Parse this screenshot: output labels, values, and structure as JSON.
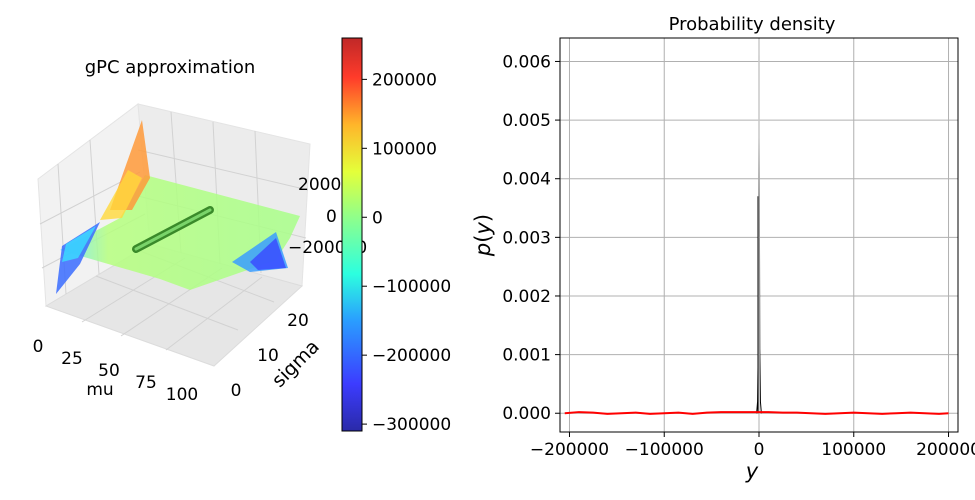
{
  "chart_data": [
    {
      "type": "surface3d",
      "title": "gPC approximation",
      "xlabel": "mu",
      "ylabel": "sigma",
      "x_ticks": [
        "0",
        "25",
        "50",
        "75",
        "100"
      ],
      "y_ticks": [
        "0",
        "10",
        "20"
      ],
      "z_ticks": [
        "-200000",
        "0",
        "200000"
      ],
      "z_tick_labels": [
        "−200000",
        "0",
        "200000"
      ],
      "xlim": [
        0,
        100
      ],
      "ylim": [
        0,
        25
      ],
      "zlim": [
        -300000,
        250000
      ],
      "colormap": "jet",
      "colorbar": {
        "ticks": [
          200000,
          100000,
          0,
          -100000,
          -200000,
          -300000
        ],
        "tick_labels": [
          "200000",
          "100000",
          "0",
          "−100000",
          "−200000",
          "−300000"
        ],
        "range": [
          -310000,
          260000
        ]
      },
      "samples_line": {
        "from": [
          0,
          0,
          0
        ],
        "to": [
          100,
          25,
          0
        ],
        "color": "#2e8b1e"
      }
    },
    {
      "type": "line",
      "title": "Probability density",
      "xlabel": "y",
      "ylabel": "p(y)",
      "xlim": [
        -210000,
        210000
      ],
      "ylim": [
        -0.00032,
        0.0064
      ],
      "grid": true,
      "x_ticks": [
        -200000,
        -100000,
        0,
        100000,
        200000
      ],
      "x_tick_labels": [
        "−200000",
        "−100000",
        "0",
        "100000",
        "200000"
      ],
      "y_ticks": [
        0.0,
        0.001,
        0.002,
        0.003,
        0.004,
        0.005,
        0.006
      ],
      "y_tick_labels": [
        "0.000",
        "0.001",
        "0.002",
        "0.003",
        "0.004",
        "0.005",
        "0.006"
      ],
      "series": [
        {
          "color": "#ff0000",
          "x": [
            -205000,
            -190000,
            -175000,
            -160000,
            -145000,
            -130000,
            -115000,
            -100000,
            -85000,
            -70000,
            -55000,
            -40000,
            -25000,
            -10000,
            0,
            10000,
            25000,
            40000,
            55000,
            70000,
            85000,
            100000,
            115000,
            130000,
            145000,
            160000,
            175000,
            190000,
            200000
          ],
          "y": [
            0.0,
            2e-05,
            1e-05,
            -1e-05,
            0.0,
            1e-05,
            -1e-05,
            0.0,
            1e-05,
            -1e-05,
            1e-05,
            2e-05,
            2e-05,
            2e-05,
            2e-05,
            2e-05,
            1e-05,
            1e-05,
            0.0,
            -1e-05,
            0.0,
            1e-05,
            0.0,
            -1e-05,
            0.0,
            1e-05,
            0.0,
            -1e-05,
            0.0
          ]
        },
        {
          "color": "#000000",
          "x": [
            -2500,
            -1500,
            -800,
            -400,
            0,
            400,
            800,
            1500,
            2500
          ],
          "y": [
            0.0,
            0.0002,
            0.0011,
            0.0037,
            0.0047,
            0.0037,
            0.0011,
            0.0002,
            0.0
          ],
          "hist_peak": 0.0061
        }
      ]
    }
  ]
}
